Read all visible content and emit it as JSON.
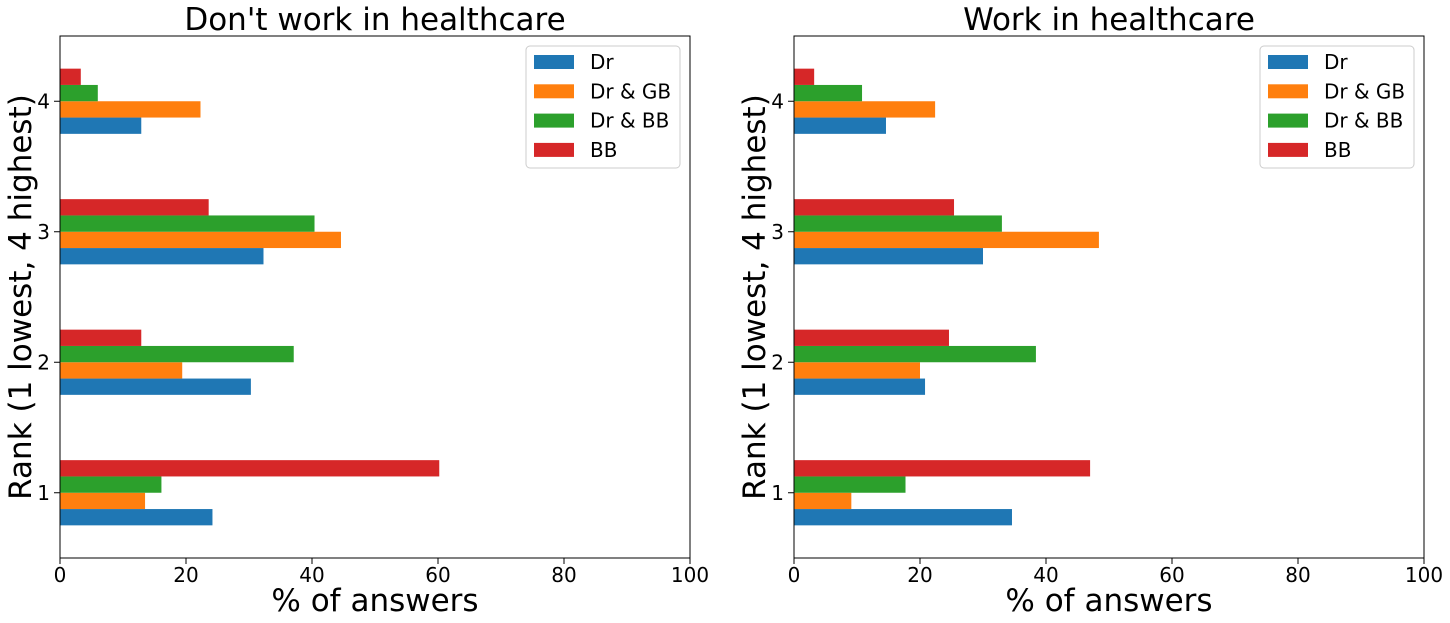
{
  "colors": {
    "Dr": "#1f77b4",
    "Dr & GB": "#ff7f0e",
    "Dr & BB": "#2ca02c",
    "BB": "#d62728"
  },
  "chart_data": [
    {
      "type": "bar",
      "orientation": "horizontal",
      "title": "Don't work in healthcare",
      "xlabel": "% of answers",
      "ylabel": "Rank (1 lowest, 4 highest)",
      "xlim": [
        0,
        100
      ],
      "xticks": [
        0,
        20,
        40,
        60,
        80,
        100
      ],
      "categories": [
        "1",
        "2",
        "3",
        "4"
      ],
      "legend": "top-right",
      "grid": false,
      "series": [
        {
          "name": "Dr",
          "values": [
            24.2,
            30.3,
            32.3,
            12.9
          ]
        },
        {
          "name": "Dr & GB",
          "values": [
            13.5,
            19.4,
            44.6,
            22.3
          ]
        },
        {
          "name": "Dr & BB",
          "values": [
            16.1,
            37.1,
            40.4,
            6.0
          ]
        },
        {
          "name": "BB",
          "values": [
            60.2,
            12.9,
            23.6,
            3.3
          ]
        }
      ]
    },
    {
      "type": "bar",
      "orientation": "horizontal",
      "title": "Work in healthcare",
      "xlabel": "% of answers",
      "ylabel": "Rank (1 lowest, 4 highest)",
      "xlim": [
        0,
        100
      ],
      "xticks": [
        0,
        20,
        40,
        60,
        80,
        100
      ],
      "categories": [
        "1",
        "2",
        "3",
        "4"
      ],
      "legend": "top-right",
      "grid": false,
      "series": [
        {
          "name": "Dr",
          "values": [
            34.6,
            20.8,
            30.0,
            14.6
          ]
        },
        {
          "name": "Dr & GB",
          "values": [
            9.1,
            20.0,
            48.4,
            22.4
          ]
        },
        {
          "name": "Dr & BB",
          "values": [
            17.7,
            38.4,
            33.0,
            10.8
          ]
        },
        {
          "name": "BB",
          "values": [
            47.0,
            24.6,
            25.4,
            3.2
          ]
        }
      ]
    }
  ]
}
